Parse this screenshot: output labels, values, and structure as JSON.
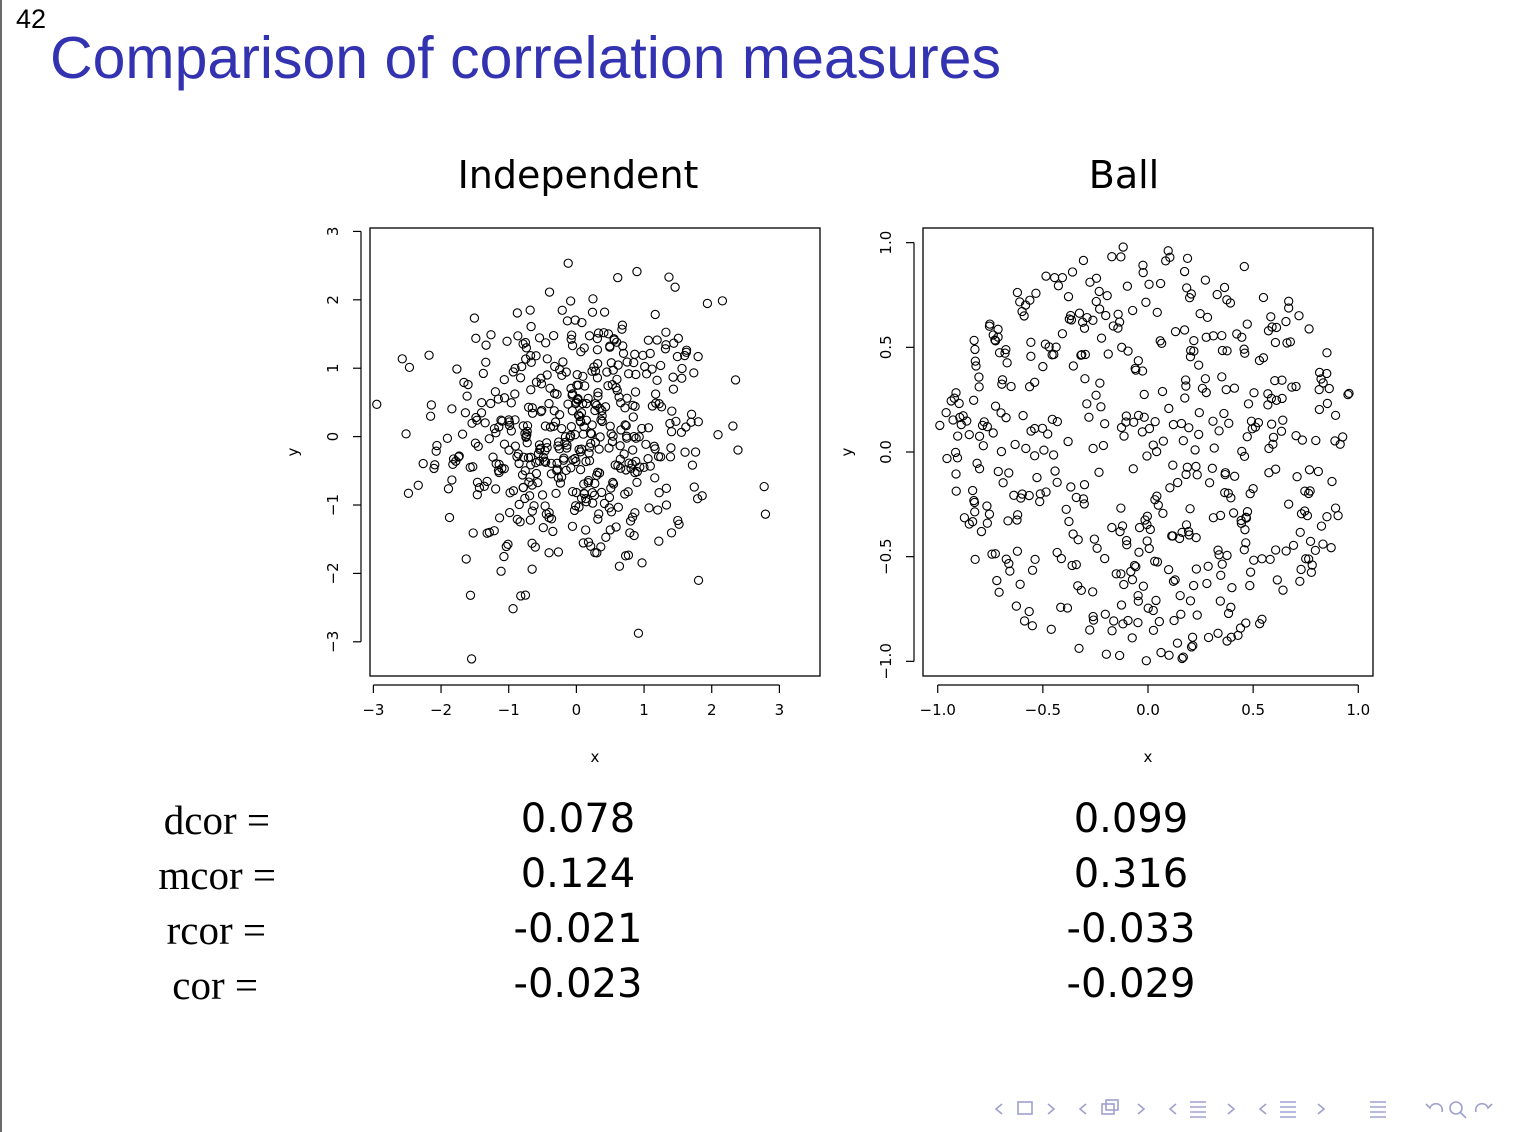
{
  "page_number": "42",
  "slide_title": "Comparison of correlation measures",
  "chart_data": [
    {
      "type": "scatter",
      "title": "Independent",
      "xlabel": "x",
      "ylabel": "y",
      "xlim": [
        -3.05,
        3.6
      ],
      "ylim": [
        -3.5,
        3.05
      ],
      "xticks": [
        -3,
        -2,
        -1,
        0,
        1,
        2,
        3
      ],
      "yticks": [
        -3,
        -2,
        -1,
        0,
        1,
        2,
        3
      ],
      "grid": false,
      "distribution": "bivariate standard normal, independent, n≈500",
      "points": []
    },
    {
      "type": "scatter",
      "title": "Ball",
      "xlabel": "x",
      "ylabel": "y",
      "xlim": [
        -1.07,
        1.07
      ],
      "ylim": [
        -1.07,
        1.07
      ],
      "xticks": [
        "-1.0",
        "-0.5",
        "0.0",
        "0.5",
        "1.0"
      ],
      "yticks": [
        "-1.0",
        "-0.5",
        "0.0",
        "0.5",
        "1.0"
      ],
      "grid": false,
      "distribution": "uniform on unit disk, n≈500",
      "points": []
    }
  ],
  "measures": {
    "rows": [
      {
        "label": "dcor =",
        "independent": "0.078",
        "ball": "0.099"
      },
      {
        "label": "mcor =",
        "independent": "0.124",
        "ball": "0.316"
      },
      {
        "label": "rcor =",
        "independent": "-0.021",
        "ball": "-0.033"
      },
      {
        "label": "cor =",
        "independent": "-0.023",
        "ball": "-0.029"
      }
    ]
  },
  "colors": {
    "title": "#3333b2",
    "nav": "#a0a0d0"
  }
}
